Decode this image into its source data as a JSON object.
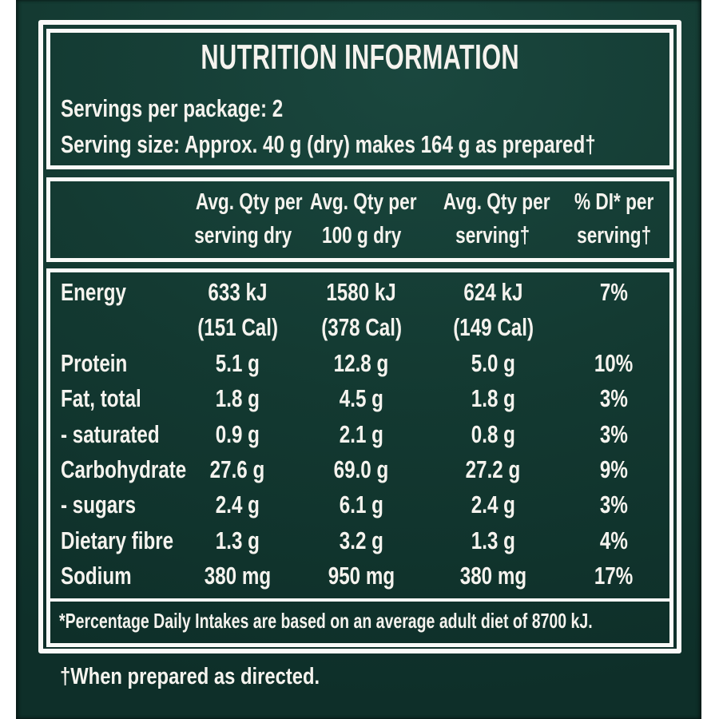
{
  "label": {
    "title": "NUTRITION INFORMATION",
    "servings_per_package": "Servings per package: 2",
    "serving_size": "Serving size: Approx. 40 g (dry) makes 164 g as prepared†",
    "columns": [
      {
        "line1": "Avg. Qty per",
        "line2": "serving dry"
      },
      {
        "line1": "Avg. Qty per",
        "line2": "100 g dry"
      },
      {
        "line1": "Avg. Qty per",
        "line2": "serving†"
      },
      {
        "line1": "% DI* per",
        "line2": "serving†"
      }
    ],
    "rows": [
      {
        "label": "Energy",
        "values": [
          "633 kJ",
          "1580 kJ",
          "624 kJ"
        ],
        "sub_values": [
          "(151 Cal)",
          "(378 Cal)",
          "(149 Cal)"
        ],
        "di": "7%"
      },
      {
        "label": "Protein",
        "values": [
          "5.1 g",
          "12.8 g",
          "5.0 g"
        ],
        "di": "10%"
      },
      {
        "label": "Fat, total",
        "values": [
          "1.8 g",
          "4.5 g",
          "1.8 g"
        ],
        "di": "3%"
      },
      {
        "label": "- saturated",
        "values": [
          "0.9 g",
          "2.1 g",
          "0.8 g"
        ],
        "di": "3%"
      },
      {
        "label": "Carbohydrate",
        "values": [
          "27.6 g",
          "69.0 g",
          "27.2 g"
        ],
        "di": "9%"
      },
      {
        "label": "- sugars",
        "values": [
          "2.4 g",
          "6.1 g",
          "2.4 g"
        ],
        "di": "3%"
      },
      {
        "label": "Dietary fibre",
        "values": [
          "1.3 g",
          "3.2 g",
          "1.3 g"
        ],
        "di": "4%"
      },
      {
        "label": "Sodium",
        "values": [
          "380 mg",
          "950 mg",
          "380 mg"
        ],
        "di": "17%"
      }
    ],
    "di_footnote": "*Percentage Daily Intakes are based on an average adult diet of 8700 kJ.",
    "prepared_footnote": "†When prepared as directed."
  },
  "colors": {
    "page_white": "#ffffff",
    "green_light": "#1a473e",
    "green_mid": "#133931",
    "green_dark": "#0e2f29",
    "border_white": "#fafaf8",
    "text_white": "#f5f3ee"
  }
}
